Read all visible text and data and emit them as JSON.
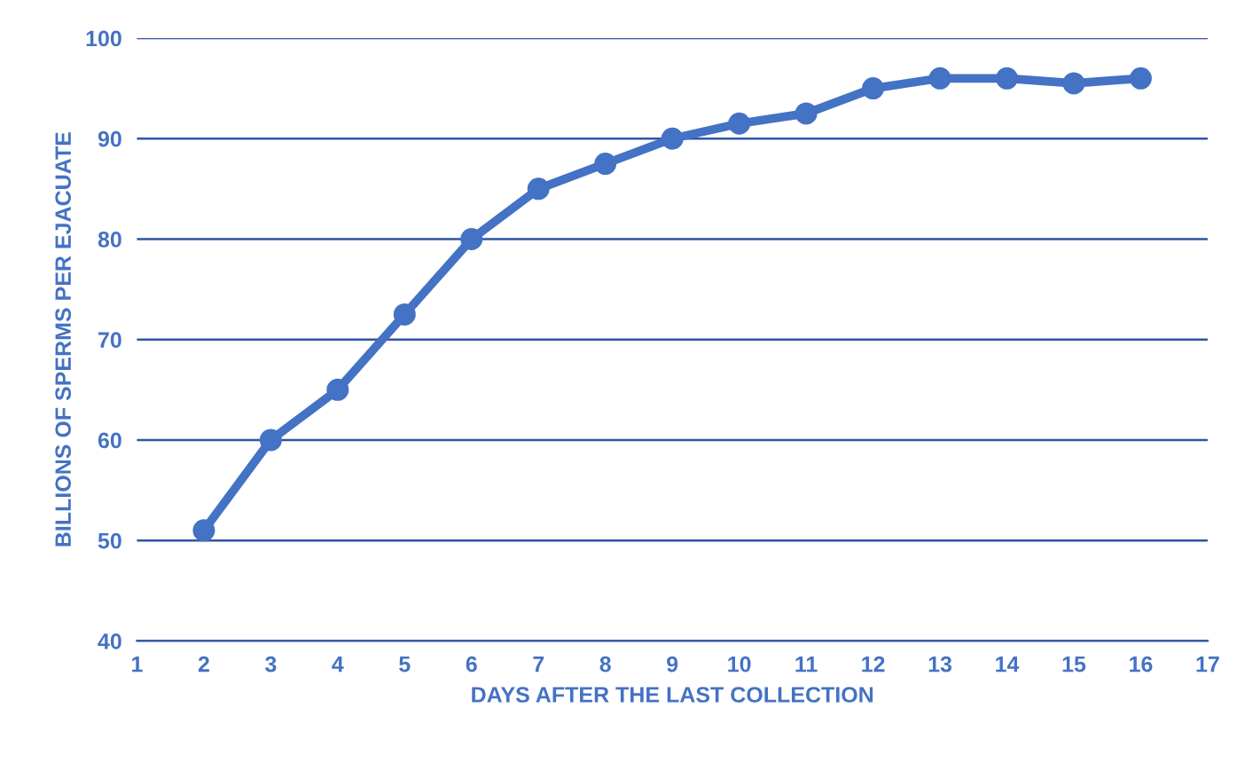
{
  "chart_data": {
    "type": "line",
    "xlabel": "DAYS AFTER THE LAST COLLECTION",
    "ylabel": "BILLIONS OF SPERMS PER EJACUATE",
    "x": [
      2,
      3,
      4,
      5,
      6,
      7,
      8,
      9,
      10,
      11,
      12,
      13,
      14,
      15,
      16
    ],
    "series": [
      {
        "color": "#4472c4",
        "values": [
          51,
          60,
          65,
          72.5,
          80,
          85,
          87.5,
          90,
          91.5,
          92.5,
          95,
          96,
          96,
          95.5,
          96
        ]
      }
    ],
    "xlim": [
      1,
      17
    ],
    "xticks": [
      1,
      2,
      3,
      4,
      5,
      6,
      7,
      8,
      9,
      10,
      11,
      12,
      13,
      14,
      15,
      16,
      17
    ],
    "ylim": [
      40,
      100
    ],
    "yticks": [
      40,
      50,
      60,
      70,
      80,
      90,
      100
    ],
    "grid": "y",
    "marker": "circle",
    "line_style": "solid"
  }
}
